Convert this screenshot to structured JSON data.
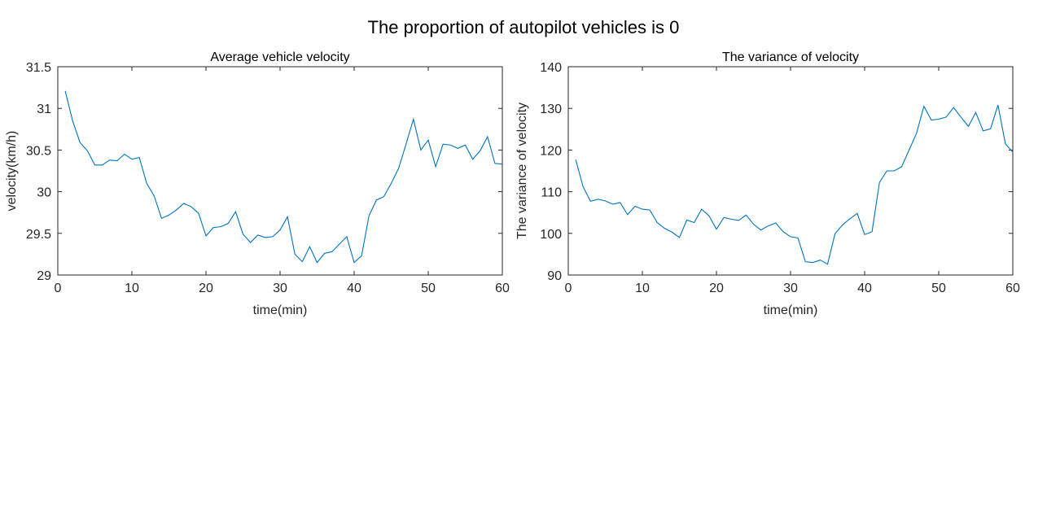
{
  "figure_title": "The proportion of autopilot vehicles is 0",
  "chart_data": [
    {
      "type": "line",
      "title": "Average vehicle velocity",
      "xlabel": "time(min)",
      "ylabel": "velocity(km/h)",
      "xlim": [
        0,
        60
      ],
      "ylim": [
        29,
        31.5
      ],
      "xticks": [
        0,
        10,
        20,
        30,
        40,
        50,
        60
      ],
      "yticks": [
        29,
        29.5,
        30,
        30.5,
        31,
        31.5
      ],
      "xtick_labels": [
        "0",
        "10",
        "20",
        "30",
        "40",
        "50",
        "60"
      ],
      "ytick_labels": [
        "29",
        "29.5",
        "30",
        "30.5",
        "31",
        "31.5"
      ],
      "grid": false,
      "series": [
        {
          "color": "#0072BD",
          "x": [
            1,
            2,
            3,
            4,
            5,
            6,
            7,
            8,
            9,
            10,
            11,
            12,
            13,
            14,
            15,
            16,
            17,
            18,
            19,
            20,
            21,
            22,
            23,
            24,
            25,
            26,
            27,
            28,
            29,
            30,
            31,
            32,
            33,
            34,
            35,
            36,
            37,
            38,
            39,
            40,
            41,
            42,
            43,
            44,
            45,
            46,
            47,
            48,
            49,
            50,
            51,
            52,
            53,
            54,
            55,
            56,
            57,
            58,
            59,
            60
          ],
          "y": [
            31.21,
            30.85,
            30.59,
            30.49,
            30.32,
            30.32,
            30.38,
            30.37,
            30.45,
            30.39,
            30.41,
            30.1,
            29.95,
            29.68,
            29.72,
            29.78,
            29.86,
            29.82,
            29.74,
            29.47,
            29.57,
            29.58,
            29.62,
            29.76,
            29.49,
            29.39,
            29.48,
            29.45,
            29.46,
            29.54,
            29.7,
            29.25,
            29.16,
            29.34,
            29.15,
            29.26,
            29.28,
            29.37,
            29.46,
            29.15,
            29.23,
            29.71,
            29.9,
            29.94,
            30.1,
            30.28,
            30.57,
            30.87,
            30.5,
            30.62,
            30.3,
            30.57,
            30.56,
            30.52,
            30.56,
            30.39,
            30.49,
            30.66,
            30.34,
            30.33
          ]
        }
      ]
    },
    {
      "type": "line",
      "title": "The variance of velocity",
      "xlabel": "time(min)",
      "ylabel": "The variance of velocity",
      "xlim": [
        0,
        60
      ],
      "ylim": [
        90,
        140
      ],
      "xticks": [
        0,
        10,
        20,
        30,
        40,
        50,
        60
      ],
      "yticks": [
        90,
        100,
        110,
        120,
        130,
        140
      ],
      "xtick_labels": [
        "0",
        "10",
        "20",
        "30",
        "40",
        "50",
        "60"
      ],
      "ytick_labels": [
        "90",
        "100",
        "110",
        "120",
        "130",
        "140"
      ],
      "grid": false,
      "series": [
        {
          "color": "#0072BD",
          "x": [
            1,
            2,
            3,
            4,
            5,
            6,
            7,
            8,
            9,
            10,
            11,
            12,
            13,
            14,
            15,
            16,
            17,
            18,
            19,
            20,
            21,
            22,
            23,
            24,
            25,
            26,
            27,
            28,
            29,
            30,
            31,
            32,
            33,
            34,
            35,
            36,
            37,
            38,
            39,
            40,
            41,
            42,
            43,
            44,
            45,
            46,
            47,
            48,
            49,
            50,
            51,
            52,
            53,
            54,
            55,
            56,
            57,
            58,
            59,
            60
          ],
          "y": [
            117.7,
            111.2,
            107.7,
            108.2,
            107.8,
            107.0,
            107.4,
            104.5,
            106.5,
            105.8,
            105.6,
            102.6,
            101.2,
            100.3,
            99.0,
            103.2,
            102.6,
            105.8,
            104.2,
            101.0,
            103.8,
            103.4,
            103.1,
            104.4,
            102.2,
            100.8,
            101.8,
            102.5,
            100.4,
            99.2,
            98.9,
            93.2,
            93.0,
            93.6,
            92.6,
            99.9,
            102.0,
            103.5,
            104.8,
            99.7,
            100.4,
            112.2,
            115.0,
            115.0,
            116.0,
            120.0,
            124.0,
            130.5,
            127.2,
            127.4,
            127.9,
            130.2,
            127.9,
            125.7,
            129.0,
            124.6,
            125.1,
            130.8,
            121.5,
            119.5
          ]
        }
      ]
    }
  ]
}
